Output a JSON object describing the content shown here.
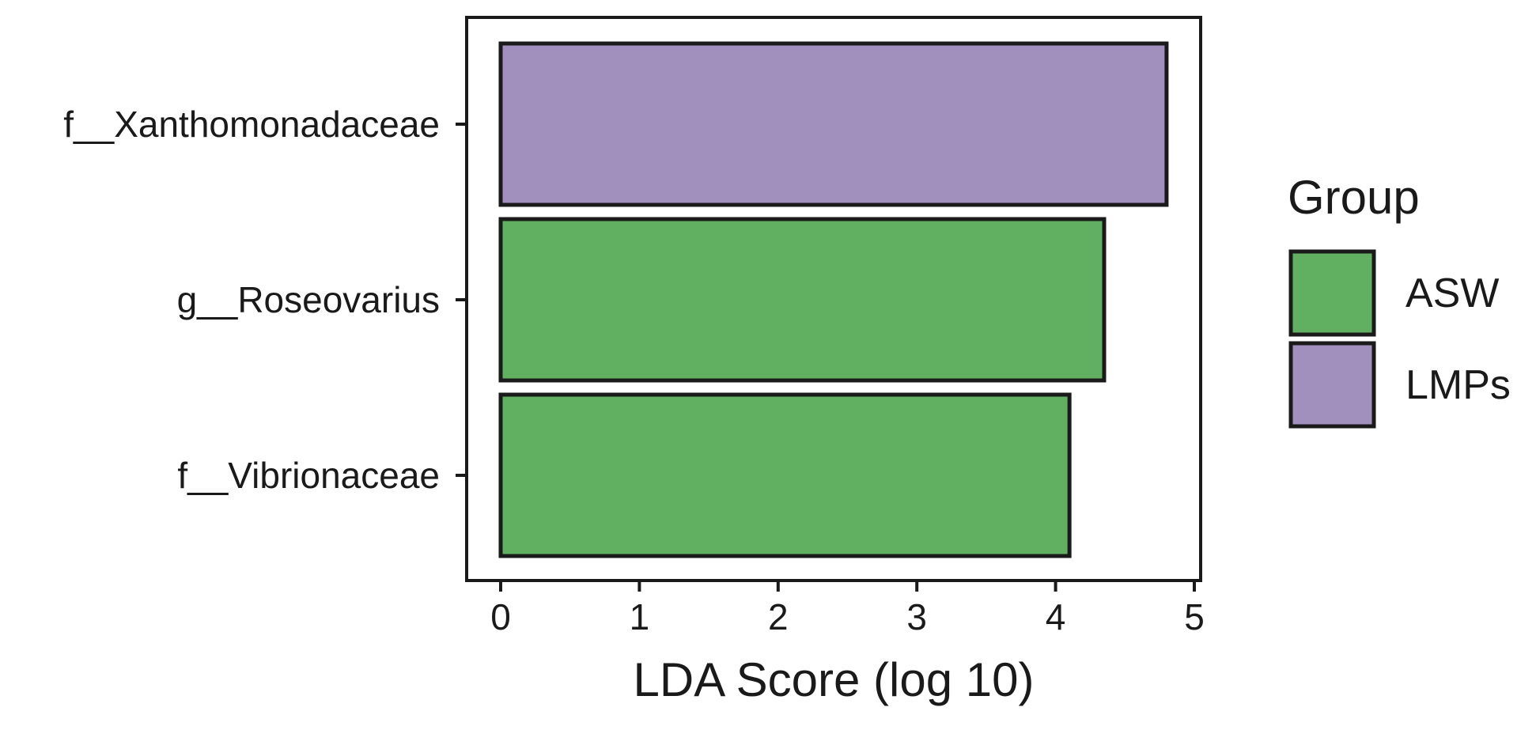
{
  "chart_data": {
    "type": "bar",
    "orientation": "horizontal",
    "categories": [
      "f__Xanthomonadaceae",
      "g__Roseovarius",
      "f__Vibrionaceae"
    ],
    "values": [
      4.8,
      4.35,
      4.1
    ],
    "groups": [
      "LMPs",
      "ASW",
      "ASW"
    ],
    "xlabel": "LDA Score (log 10)",
    "ylabel": "",
    "xlim": [
      0,
      5
    ],
    "xticks": [
      0,
      1,
      2,
      3,
      4,
      5
    ],
    "grid": false,
    "legend": {
      "title": "Group",
      "position": "right",
      "entries": [
        {
          "name": "ASW",
          "color": "#61b061"
        },
        {
          "name": "LMPs",
          "color": "#a18fbd"
        }
      ]
    }
  }
}
